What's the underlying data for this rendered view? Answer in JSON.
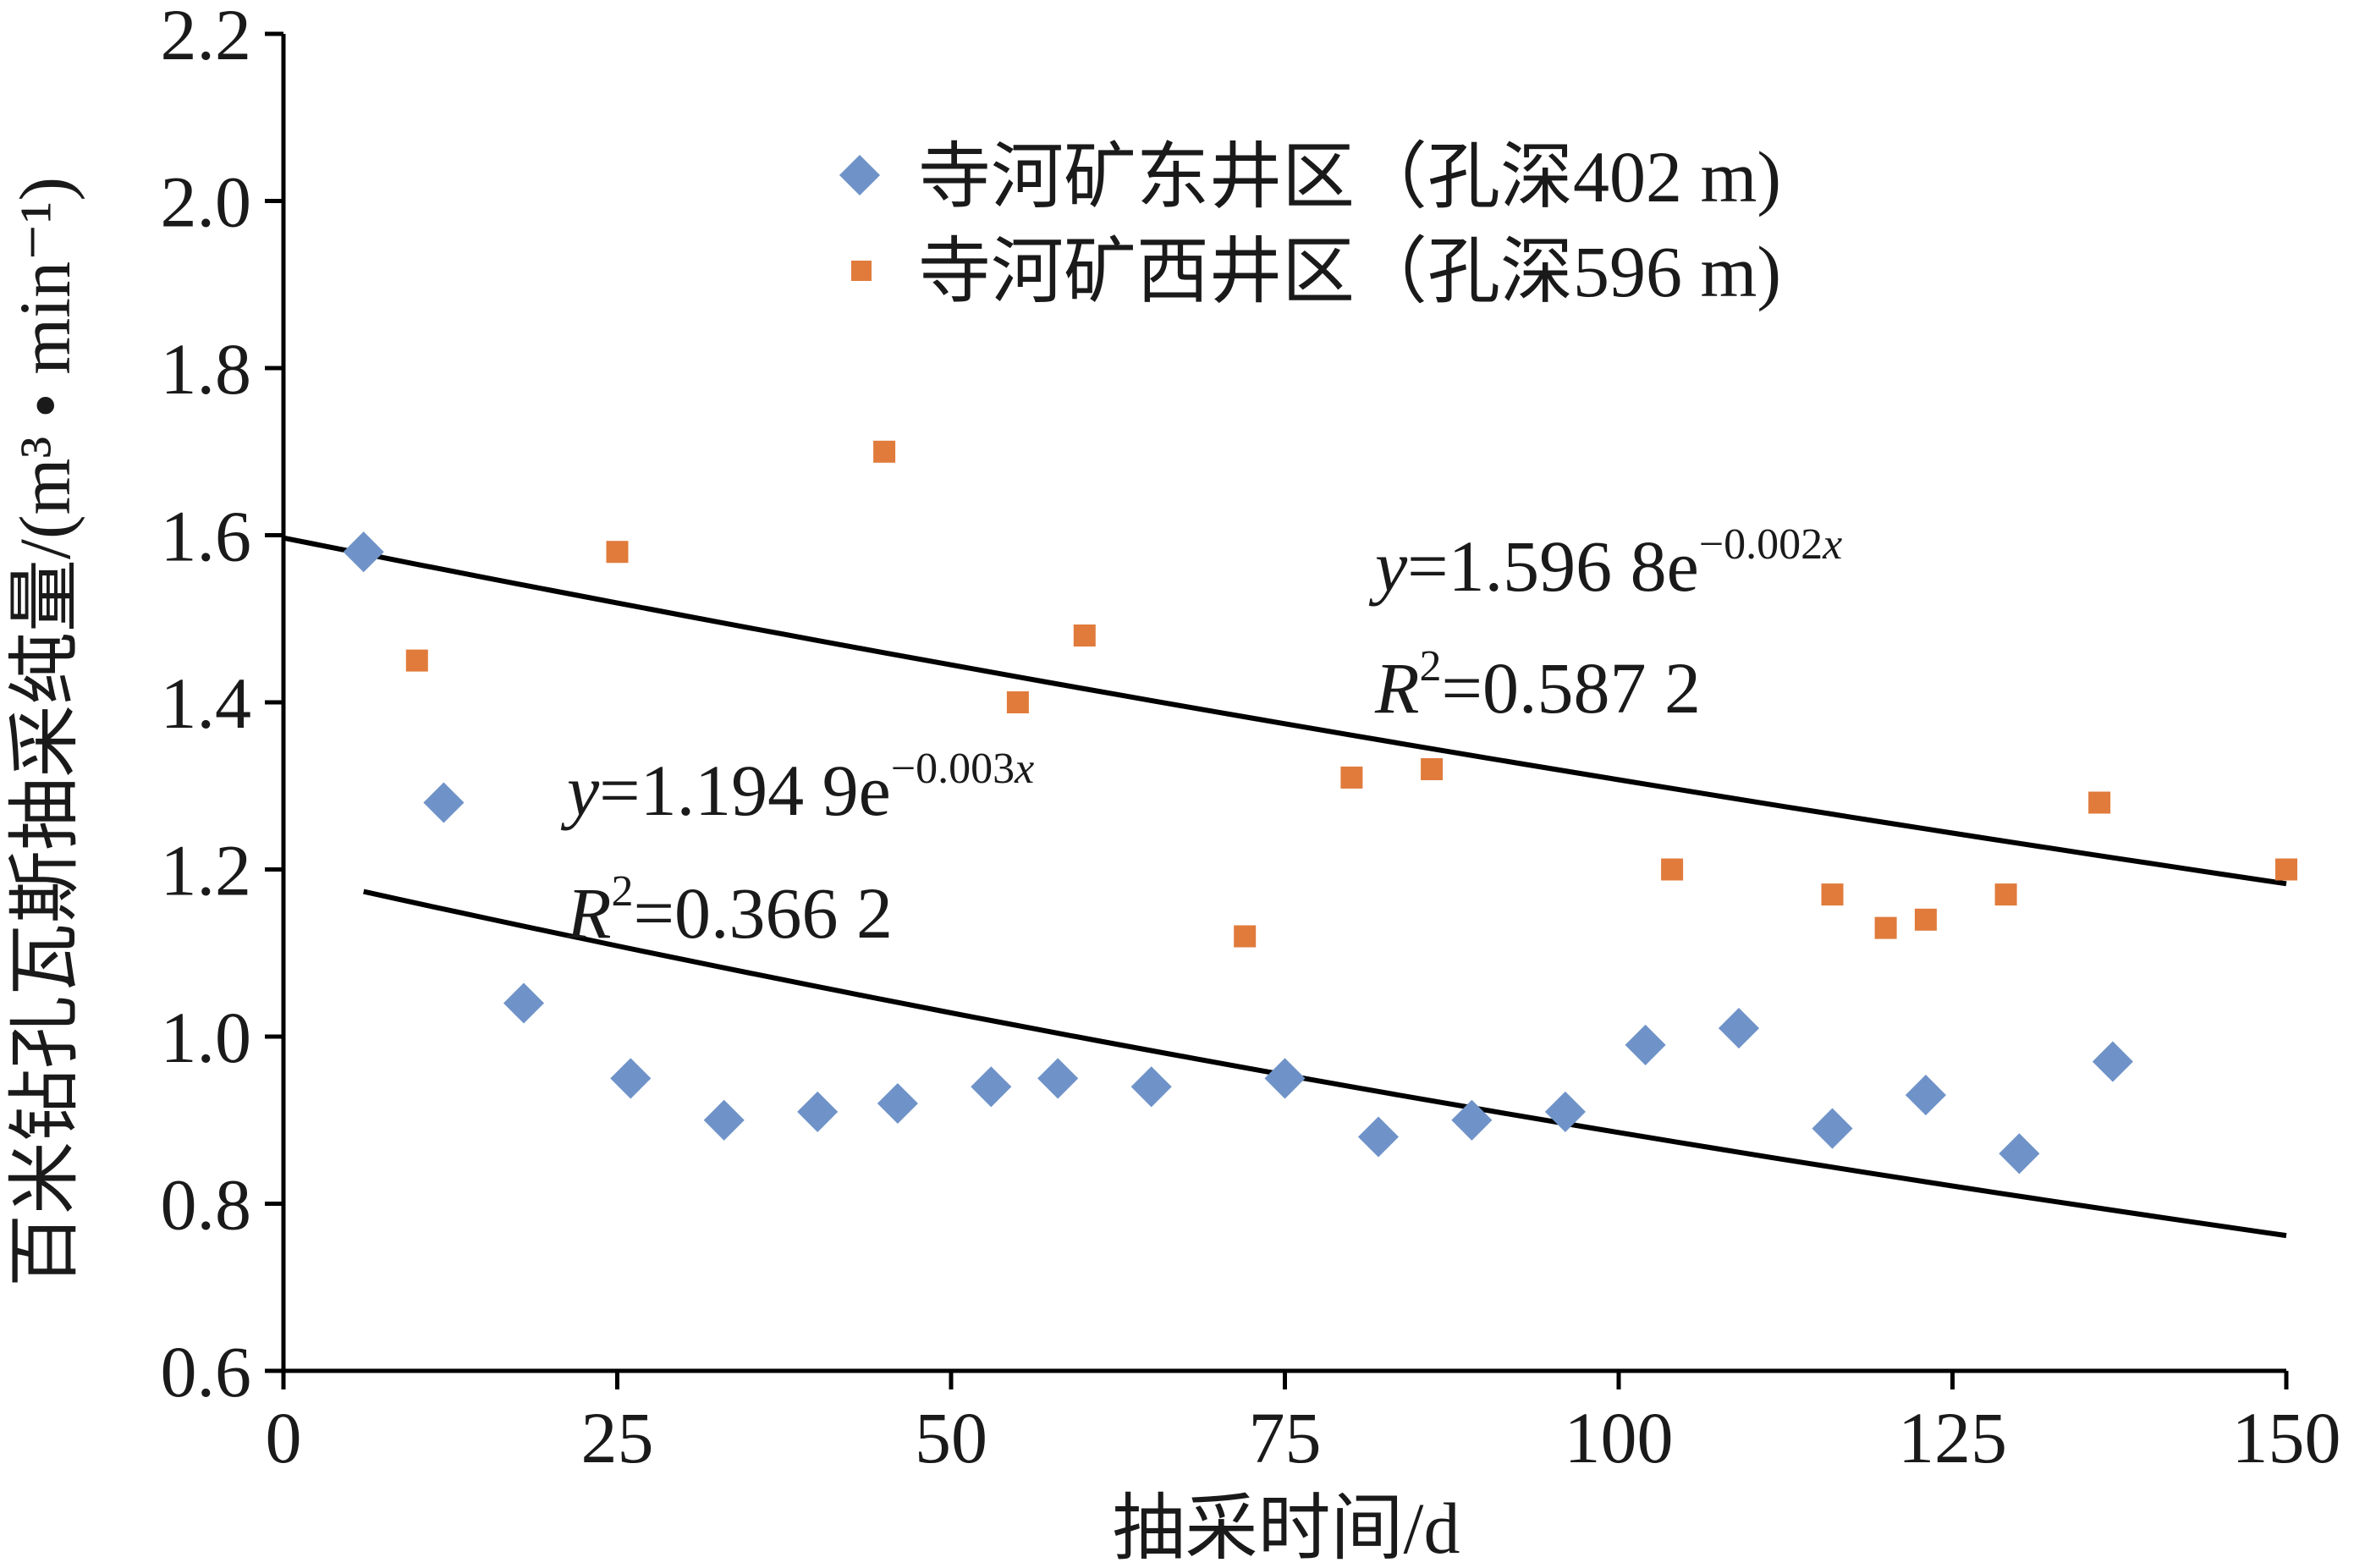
{
  "chart_data": {
    "type": "scatter",
    "xlabel": "抽采时间/d",
    "ylabel": "百米钻孔瓦斯抽采纯量/(m³ • min⁻¹)",
    "xlim": [
      0,
      150
    ],
    "ylim": [
      0.6,
      2.2
    ],
    "x_ticks": [
      "0",
      "25",
      "50",
      "75",
      "100",
      "125",
      "150"
    ],
    "y_ticks": [
      "0.6",
      "0.8",
      "1.0",
      "1.2",
      "1.4",
      "1.6",
      "1.8",
      "2.0",
      "2.2"
    ],
    "grid": false,
    "legend_position": "top-center",
    "series": [
      {
        "name": "寺河矿东井区（孔深402 m)",
        "marker": "diamond",
        "color": "#6f93c8",
        "points": [
          [
            6,
            1.58
          ],
          [
            12,
            1.28
          ],
          [
            18,
            1.04
          ],
          [
            26,
            0.95
          ],
          [
            33,
            0.9
          ],
          [
            40,
            0.91
          ],
          [
            46,
            0.92
          ],
          [
            53,
            0.94
          ],
          [
            58,
            0.95
          ],
          [
            65,
            0.94
          ],
          [
            75,
            0.95
          ],
          [
            82,
            0.88
          ],
          [
            89,
            0.9
          ],
          [
            96,
            0.91
          ],
          [
            102,
            0.99
          ],
          [
            109,
            1.01
          ],
          [
            116,
            0.89
          ],
          [
            123,
            0.93
          ],
          [
            130,
            0.86
          ],
          [
            137,
            0.97
          ]
        ],
        "trendline": {
          "a": 1.1949,
          "b": -0.003,
          "x_range": [
            6,
            150
          ],
          "equation_prefix": "y",
          "equation_main": "=1.194 9e",
          "equation_exp": "−0.003",
          "equation_exp_var": "x",
          "r2_prefix": "R",
          "r2_sup": "2",
          "r2_value": "=0.366 2"
        }
      },
      {
        "name": "寺河矿西井区（孔深596 m)",
        "marker": "square",
        "color": "#e07b3c",
        "points": [
          [
            10,
            1.45
          ],
          [
            25,
            1.58
          ],
          [
            45,
            1.7
          ],
          [
            55,
            1.4
          ],
          [
            60,
            1.48
          ],
          [
            72,
            1.12
          ],
          [
            80,
            1.31
          ],
          [
            86,
            1.32
          ],
          [
            104,
            1.2
          ],
          [
            116,
            1.17
          ],
          [
            120,
            1.13
          ],
          [
            123,
            1.14
          ],
          [
            129,
            1.17
          ],
          [
            136,
            1.28
          ],
          [
            150,
            1.2
          ]
        ],
        "trendline": {
          "a": 1.5968,
          "b": -0.002,
          "x_range": [
            0,
            150
          ],
          "equation_prefix": "y",
          "equation_main": "=1.596 8e",
          "equation_exp": "−0.002",
          "equation_exp_var": "x",
          "r2_prefix": "R",
          "r2_sup": "2",
          "r2_value": "=0.587 2"
        }
      }
    ]
  }
}
